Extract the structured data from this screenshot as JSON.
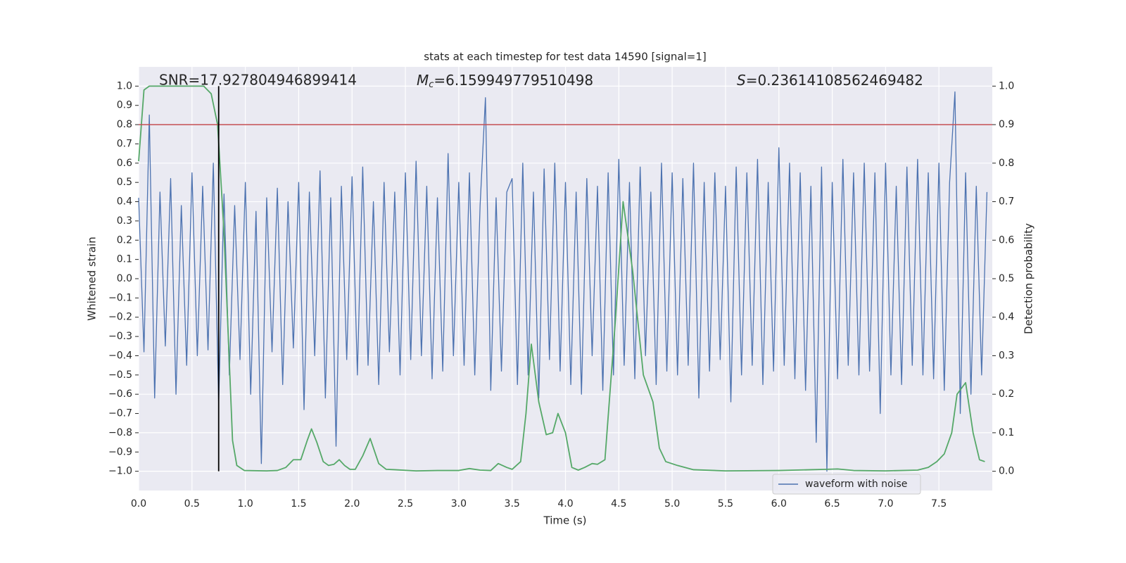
{
  "chart_data": {
    "type": "line",
    "title": "stats at each timestep for test data 14590 [signal=1]",
    "xlabel": "Time (s)",
    "ylabel": "Whitened strain",
    "y2label": "Detection probability",
    "annotations": [
      {
        "text": "SNR=17.927804946899414"
      },
      {
        "symbol": "M",
        "subscript": "c",
        "text": "=6.159949779510498"
      },
      {
        "symbol": "S",
        "text": "=0.23614108562469482"
      }
    ],
    "xlim": [
      0,
      8.0
    ],
    "ylim": [
      -1.1,
      1.1
    ],
    "y2lim": [
      -0.05,
      1.05
    ],
    "xticks": [
      {
        "value": 0,
        "label": "0.0"
      },
      {
        "value": 0.5,
        "label": "0.5"
      },
      {
        "value": 1,
        "label": "1.0"
      },
      {
        "value": 1.5,
        "label": "1.5"
      },
      {
        "value": 2,
        "label": "2.0"
      },
      {
        "value": 2.5,
        "label": "2.5"
      },
      {
        "value": 3,
        "label": "3.0"
      },
      {
        "value": 3.5,
        "label": "3.5"
      },
      {
        "value": 4,
        "label": "4.0"
      },
      {
        "value": 4.5,
        "label": "4.5"
      },
      {
        "value": 5,
        "label": "5.0"
      },
      {
        "value": 5.5,
        "label": "5.5"
      },
      {
        "value": 6,
        "label": "6.0"
      },
      {
        "value": 6.5,
        "label": "6.5"
      },
      {
        "value": 7,
        "label": "7.0"
      },
      {
        "value": 7.5,
        "label": "7.5"
      }
    ],
    "yticks": [
      {
        "value": -1,
        "label": "−1.0"
      },
      {
        "value": -0.9,
        "label": "−0.9"
      },
      {
        "value": -0.8,
        "label": "−0.8"
      },
      {
        "value": -0.7,
        "label": "−0.7"
      },
      {
        "value": -0.6,
        "label": "−0.6"
      },
      {
        "value": -0.5,
        "label": "−0.5"
      },
      {
        "value": -0.4,
        "label": "−0.4"
      },
      {
        "value": -0.3,
        "label": "−0.3"
      },
      {
        "value": -0.2,
        "label": "−0.2"
      },
      {
        "value": -0.1,
        "label": "−0.1"
      },
      {
        "value": 0,
        "label": "0.0"
      },
      {
        "value": 0.1,
        "label": "0.1"
      },
      {
        "value": 0.2,
        "label": "0.2"
      },
      {
        "value": 0.3,
        "label": "0.3"
      },
      {
        "value": 0.4,
        "label": "0.4"
      },
      {
        "value": 0.5,
        "label": "0.5"
      },
      {
        "value": 0.6,
        "label": "0.6"
      },
      {
        "value": 0.7,
        "label": "0.7"
      },
      {
        "value": 0.8,
        "label": "0.8"
      },
      {
        "value": 0.9,
        "label": "0.9"
      },
      {
        "value": 1,
        "label": "1.0"
      }
    ],
    "y2ticks": [
      {
        "value": 0,
        "label": "0.0"
      },
      {
        "value": 0.1,
        "label": "0.1"
      },
      {
        "value": 0.2,
        "label": "0.2"
      },
      {
        "value": 0.3,
        "label": "0.3"
      },
      {
        "value": 0.4,
        "label": "0.4"
      },
      {
        "value": 0.5,
        "label": "0.5"
      },
      {
        "value": 0.6,
        "label": "0.6"
      },
      {
        "value": 0.7,
        "label": "0.7"
      },
      {
        "value": 0.8,
        "label": "0.8"
      },
      {
        "value": 0.9,
        "label": "0.9"
      },
      {
        "value": 1,
        "label": "1.0"
      }
    ],
    "grid": true,
    "legend": "lower right",
    "hline": {
      "y": 0.8,
      "color": "#c44e52"
    },
    "vline": {
      "x": 0.75,
      "ymin": -1.0,
      "ymax": 1.0,
      "color": "#000000"
    },
    "series": [
      {
        "name": "waveform with noise",
        "color": "#4c72b0",
        "x": [
          0,
          0.05,
          0.1,
          0.15,
          0.2,
          0.25,
          0.3,
          0.35,
          0.4,
          0.45,
          0.5,
          0.55,
          0.6,
          0.65,
          0.7,
          0.75,
          0.8,
          0.85,
          0.9,
          0.95,
          1,
          1.05,
          1.1,
          1.15,
          1.2,
          1.25,
          1.3,
          1.35,
          1.4,
          1.45,
          1.5,
          1.55,
          1.6,
          1.65,
          1.7,
          1.75,
          1.8,
          1.85,
          1.9,
          1.95,
          2,
          2.05,
          2.1,
          2.15,
          2.2,
          2.25,
          2.3,
          2.35,
          2.4,
          2.45,
          2.5,
          2.55,
          2.6,
          2.65,
          2.7,
          2.75,
          2.8,
          2.85,
          2.9,
          2.95,
          3,
          3.05,
          3.1,
          3.15,
          3.2,
          3.25,
          3.3,
          3.35,
          3.4,
          3.45,
          3.5,
          3.55,
          3.6,
          3.65,
          3.7,
          3.75,
          3.8,
          3.85,
          3.9,
          3.95,
          4,
          4.05,
          4.1,
          4.15,
          4.2,
          4.25,
          4.3,
          4.35,
          4.4,
          4.45,
          4.5,
          4.55,
          4.6,
          4.65,
          4.7,
          4.75,
          4.8,
          4.85,
          4.9,
          4.95,
          5,
          5.05,
          5.1,
          5.15,
          5.2,
          5.25,
          5.3,
          5.35,
          5.4,
          5.45,
          5.5,
          5.55,
          5.6,
          5.65,
          5.7,
          5.75,
          5.8,
          5.85,
          5.9,
          5.95,
          6,
          6.05,
          6.1,
          6.15,
          6.2,
          6.25,
          6.3,
          6.35,
          6.4,
          6.45,
          6.5,
          6.55,
          6.6,
          6.65,
          6.7,
          6.75,
          6.8,
          6.85,
          6.9,
          6.95,
          7,
          7.05,
          7.1,
          7.15,
          7.2,
          7.25,
          7.3,
          7.35,
          7.4,
          7.45,
          7.5,
          7.55,
          7.6,
          7.65,
          7.7,
          7.75,
          7.8,
          7.85,
          7.9,
          7.95
        ],
        "values": [
          0.42,
          -0.38,
          0.85,
          -0.62,
          0.45,
          -0.35,
          0.52,
          -0.6,
          0.38,
          -0.45,
          0.55,
          -0.4,
          0.48,
          -0.37,
          0.6,
          -0.65,
          0.44,
          -0.5,
          0.38,
          -0.42,
          0.5,
          -0.6,
          0.35,
          -0.96,
          0.42,
          -0.38,
          0.47,
          -0.55,
          0.4,
          -0.36,
          0.5,
          -0.68,
          0.45,
          -0.4,
          0.56,
          -0.62,
          0.42,
          -0.87,
          0.48,
          -0.42,
          0.53,
          -0.5,
          0.58,
          -0.45,
          0.4,
          -0.55,
          0.5,
          -0.38,
          0.45,
          -0.5,
          0.55,
          -0.42,
          0.61,
          -0.4,
          0.48,
          -0.52,
          0.42,
          -0.48,
          0.65,
          -0.4,
          0.5,
          -0.45,
          0.55,
          -0.5,
          0.38,
          0.94,
          -0.58,
          0.42,
          -0.48,
          0.45,
          0.52,
          -0.55,
          0.6,
          -0.5,
          0.45,
          -0.62,
          0.57,
          -0.42,
          0.6,
          -0.48,
          0.5,
          -0.55,
          0.45,
          -0.6,
          0.52,
          -0.4,
          0.48,
          -0.58,
          0.55,
          -0.5,
          0.62,
          -0.45,
          0.5,
          -0.52,
          0.58,
          -0.4,
          0.45,
          -0.55,
          0.6,
          -0.48,
          0.55,
          -0.5,
          0.52,
          -0.45,
          0.6,
          -0.62,
          0.5,
          -0.48,
          0.55,
          -0.42,
          0.48,
          -0.64,
          0.58,
          -0.5,
          0.55,
          -0.45,
          0.62,
          -0.55,
          0.5,
          -0.48,
          0.68,
          -0.45,
          0.6,
          -0.52,
          0.55,
          -0.58,
          0.48,
          -0.85,
          0.58,
          -1.0,
          0.5,
          -0.52,
          0.62,
          -0.45,
          0.55,
          -0.5,
          0.6,
          -0.48,
          0.55,
          -0.7,
          0.6,
          -0.5,
          0.48,
          -0.55,
          0.58,
          -0.45,
          0.62,
          -0.5,
          0.55,
          -0.52,
          0.6,
          -0.58,
          0.5,
          0.97,
          -0.7,
          0.55,
          -0.6,
          0.48,
          -0.5,
          0.45
        ]
      },
      {
        "color": "#55a868",
        "axis": "y2",
        "x": [
          0,
          0.05,
          0.1,
          0.3,
          0.5,
          0.61,
          0.68,
          0.74,
          0.8,
          0.88,
          0.92,
          0.99,
          1.2,
          1.3,
          1.38,
          1.45,
          1.52,
          1.58,
          1.62,
          1.67,
          1.73,
          1.78,
          1.83,
          1.88,
          1.93,
          1.98,
          2.03,
          2.1,
          2.17,
          2.25,
          2.32,
          2.4,
          2.6,
          2.8,
          3.0,
          3.1,
          3.2,
          3.3,
          3.37,
          3.45,
          3.5,
          3.58,
          3.63,
          3.68,
          3.75,
          3.82,
          3.88,
          3.93,
          4.0,
          4.06,
          4.12,
          4.18,
          4.25,
          4.3,
          4.37,
          4.47,
          4.54,
          4.63,
          4.73,
          4.82,
          4.88,
          4.94,
          5.05,
          5.2,
          5.5,
          6.0,
          6.3,
          6.45,
          6.55,
          6.7,
          7.0,
          7.3,
          7.4,
          7.48,
          7.55,
          7.62,
          7.67,
          7.75,
          7.82,
          7.88,
          7.93
        ],
        "values": [
          0.805,
          0.99,
          1.0,
          1.0,
          1.0,
          1.0,
          0.98,
          0.9,
          0.62,
          0.08,
          0.015,
          0.002,
          0.001,
          0.002,
          0.01,
          0.03,
          0.03,
          0.08,
          0.11,
          0.075,
          0.025,
          0.015,
          0.018,
          0.03,
          0.015,
          0.005,
          0.005,
          0.04,
          0.085,
          0.02,
          0.005,
          0.004,
          0.001,
          0.002,
          0.002,
          0.007,
          0.003,
          0.002,
          0.02,
          0.01,
          0.005,
          0.025,
          0.15,
          0.33,
          0.18,
          0.095,
          0.1,
          0.15,
          0.1,
          0.01,
          0.003,
          0.01,
          0.02,
          0.018,
          0.03,
          0.4,
          0.7,
          0.52,
          0.25,
          0.18,
          0.06,
          0.025,
          0.015,
          0.004,
          0.001,
          0.002,
          0.004,
          0.005,
          0.006,
          0.002,
          0.001,
          0.003,
          0.01,
          0.025,
          0.045,
          0.1,
          0.2,
          0.23,
          0.1,
          0.03,
          0.025
        ]
      }
    ]
  }
}
